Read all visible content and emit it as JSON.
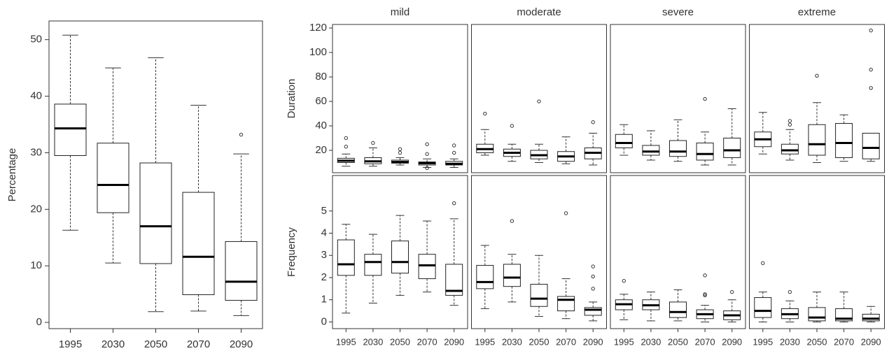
{
  "chart_data": [
    {
      "type": "box",
      "ylabel": "Percentage",
      "categories": [
        "1995",
        "2030",
        "2050",
        "2070",
        "2090"
      ],
      "ylim": [
        -1.1,
        53.3
      ],
      "yticks": [
        0,
        10,
        20,
        30,
        40,
        50
      ],
      "boxes": [
        {
          "whislo": 16.3,
          "q1": 29.5,
          "med": 34.3,
          "q3": 38.6,
          "whishi": 50.8
        },
        {
          "whislo": 10.5,
          "q1": 19.4,
          "med": 24.3,
          "q3": 31.7,
          "whishi": 45
        },
        {
          "whislo": 1.9,
          "q1": 10.4,
          "med": 17,
          "q3": 28.2,
          "whishi": 46.8
        },
        {
          "whislo": 2,
          "q1": 4.9,
          "med": 11.6,
          "q3": 23,
          "whishi": 38.4
        },
        {
          "whislo": 1.2,
          "q1": 3.9,
          "med": 7.2,
          "q3": 14.3,
          "whishi": 29.8,
          "fliers": [
            33.2
          ]
        }
      ]
    },
    {
      "type": "box",
      "columns": [
        "mild",
        "moderate",
        "severe",
        "extreme"
      ],
      "categories": [
        "1995",
        "2030",
        "2050",
        "2070",
        "2090"
      ],
      "rows": [
        {
          "ylabel": "Duration",
          "ylim": [
            1.7,
            122.9
          ],
          "yticks": [
            20,
            40,
            60,
            80,
            100,
            120
          ],
          "panels": [
            [
              {
                "whislo": 7,
                "q1": 10,
                "med": 11.5,
                "q3": 13.5,
                "whishi": 17,
                "fliers": [
                  23,
                  30
                ]
              },
              {
                "whislo": 7,
                "q1": 9,
                "med": 11,
                "q3": 14,
                "whishi": 22,
                "fliers": [
                  26
                ]
              },
              {
                "whislo": 8,
                "q1": 9.5,
                "med": 10.5,
                "q3": 12,
                "whishi": 14,
                "fliers": [
                  18,
                  21
                ]
              },
              {
                "whislo": 6,
                "q1": 8,
                "med": 9.5,
                "q3": 10.5,
                "whishi": 13,
                "fliers": [
                  5.5,
                  17,
                  25
                ]
              },
              {
                "whislo": 6,
                "q1": 8,
                "med": 9,
                "q3": 11,
                "whishi": 13,
                "fliers": [
                  18,
                  24
                ]
              }
            ],
            [
              {
                "whislo": 16,
                "q1": 18,
                "med": 21,
                "q3": 25,
                "whishi": 37,
                "fliers": [
                  50
                ]
              },
              {
                "whislo": 11,
                "q1": 15,
                "med": 18,
                "q3": 21,
                "whishi": 25,
                "fliers": [
                  40
                ]
              },
              {
                "whislo": 10,
                "q1": 13,
                "med": 16,
                "q3": 20,
                "whishi": 25,
                "fliers": [
                  60
                ]
              },
              {
                "whislo": 9,
                "q1": 11,
                "med": 15,
                "q3": 19,
                "whishi": 31
              },
              {
                "whislo": 8,
                "q1": 13,
                "med": 18,
                "q3": 22,
                "whishi": 34,
                "fliers": [
                  43
                ]
              }
            ],
            [
              {
                "whislo": 16,
                "q1": 22,
                "med": 26,
                "q3": 33,
                "whishi": 41
              },
              {
                "whislo": 12,
                "q1": 16,
                "med": 19,
                "q3": 24,
                "whishi": 36
              },
              {
                "whislo": 11,
                "q1": 15,
                "med": 19,
                "q3": 28,
                "whishi": 45
              },
              {
                "whislo": 8,
                "q1": 12,
                "med": 17,
                "q3": 26,
                "whishi": 35,
                "fliers": [
                  62
                ]
              },
              {
                "whislo": 8,
                "q1": 14,
                "med": 20,
                "q3": 30,
                "whishi": 54
              }
            ],
            [
              {
                "whislo": 17,
                "q1": 23,
                "med": 29,
                "q3": 35,
                "whishi": 51
              },
              {
                "whislo": 12,
                "q1": 17,
                "med": 20,
                "q3": 25,
                "whishi": 37,
                "fliers": [
                  41,
                  44
                ]
              },
              {
                "whislo": 10,
                "q1": 16,
                "med": 25,
                "q3": 41,
                "whishi": 59,
                "fliers": [
                  81
                ]
              },
              {
                "whislo": 11,
                "q1": 14,
                "med": 26,
                "q3": 42,
                "whishi": 49
              },
              {
                "whislo": 11,
                "q1": 13,
                "med": 22,
                "q3": 34,
                "whishi": 34,
                "fliers": [
                  71,
                  86,
                  118
                ]
              }
            ]
          ]
        },
        {
          "ylabel": "Frequency",
          "ylim": [
            -0.3,
            6.6
          ],
          "yticks": [
            0,
            1,
            2,
            3,
            4,
            5
          ],
          "panels": [
            [
              {
                "whislo": 0.4,
                "q1": 2.1,
                "med": 2.6,
                "q3": 3.7,
                "whishi": 4.4
              },
              {
                "whislo": 0.85,
                "q1": 2.1,
                "med": 2.7,
                "q3": 3.05,
                "whishi": 3.95
              },
              {
                "whislo": 1.2,
                "q1": 2.2,
                "med": 2.7,
                "q3": 3.65,
                "whishi": 4.8
              },
              {
                "whislo": 1.35,
                "q1": 1.95,
                "med": 2.55,
                "q3": 3.05,
                "whishi": 4.55
              },
              {
                "whislo": 0.75,
                "q1": 1.2,
                "med": 1.4,
                "q3": 2.6,
                "whishi": 4.65,
                "fliers": [
                  5.35
                ]
              }
            ],
            [
              {
                "whislo": 0.6,
                "q1": 1.5,
                "med": 1.8,
                "q3": 2.55,
                "whishi": 3.45
              },
              {
                "whislo": 0.9,
                "q1": 1.6,
                "med": 2.0,
                "q3": 2.6,
                "whishi": 3.05,
                "fliers": [
                  4.55
                ]
              },
              {
                "whislo": 0.25,
                "q1": 0.7,
                "med": 1.05,
                "q3": 1.7,
                "whishi": 3.0
              },
              {
                "whislo": 0.15,
                "q1": 0.5,
                "med": 1.0,
                "q3": 1.15,
                "whishi": 1.95,
                "fliers": [
                  4.9
                ]
              },
              {
                "whislo": 0.05,
                "q1": 0.3,
                "med": 0.55,
                "q3": 0.65,
                "whishi": 0.9,
                "fliers": [
                  1.5,
                  2.05,
                  2.5
                ]
              }
            ],
            [
              {
                "whislo": 0.1,
                "q1": 0.55,
                "med": 0.8,
                "q3": 1.0,
                "whishi": 1.25,
                "fliers": [
                  1.85
                ]
              },
              {
                "whislo": 0.05,
                "q1": 0.55,
                "med": 0.75,
                "q3": 1.0,
                "whishi": 1.35
              },
              {
                "whislo": 0.05,
                "q1": 0.2,
                "med": 0.45,
                "q3": 0.9,
                "whishi": 1.45
              },
              {
                "whislo": 0.0,
                "q1": 0.15,
                "med": 0.35,
                "q3": 0.55,
                "whishi": 0.75,
                "fliers": [
                  1.2,
                  1.25,
                  2.1
                ]
              },
              {
                "whislo": 0.0,
                "q1": 0.1,
                "med": 0.3,
                "q3": 0.5,
                "whishi": 1.0,
                "fliers": [
                  1.35
                ]
              }
            ],
            [
              {
                "whislo": 0.0,
                "q1": 0.2,
                "med": 0.5,
                "q3": 1.1,
                "whishi": 1.35,
                "fliers": [
                  2.65
                ]
              },
              {
                "whislo": 0.0,
                "q1": 0.15,
                "med": 0.35,
                "q3": 0.6,
                "whishi": 0.95,
                "fliers": [
                  1.35
                ]
              },
              {
                "whislo": 0.0,
                "q1": 0.05,
                "med": 0.2,
                "q3": 0.65,
                "whishi": 1.35
              },
              {
                "whislo": 0.0,
                "q1": 0.05,
                "med": 0.15,
                "q3": 0.6,
                "whishi": 1.35
              },
              {
                "whislo": 0.0,
                "q1": 0.05,
                "med": 0.15,
                "q3": 0.35,
                "whishi": 0.7
              }
            ]
          ]
        }
      ]
    }
  ]
}
